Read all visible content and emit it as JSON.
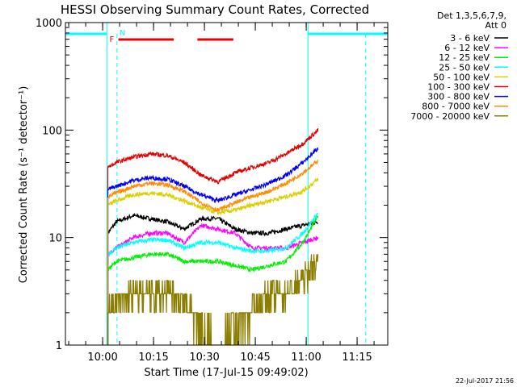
{
  "chart_data": {
    "type": "line",
    "title": "HESSI Observing Summary Count Rates, Corrected",
    "xlabel": "Start Time (17-Jul-15 09:49:02)",
    "ylabel": "Corrected Count Rate (s⁻¹ detector⁻¹)",
    "yscale": "log",
    "ylim": [
      1,
      1000
    ],
    "xlim_minutes_after_start": [
      0,
      95
    ],
    "yticks": [
      "1",
      "10",
      "100",
      "1000"
    ],
    "xticks": [
      {
        "label": "10:00",
        "t": 10.97
      },
      {
        "label": "10:15",
        "t": 25.97
      },
      {
        "label": "10:30",
        "t": 40.97
      },
      {
        "label": "10:45",
        "t": 55.97
      },
      {
        "label": "11:00",
        "t": 70.97
      },
      {
        "label": "11:15",
        "t": 85.97
      }
    ],
    "legend": {
      "header": [
        "Det 1,3,5,6,7,9,",
        "Att 0"
      ],
      "placement": "outside-right",
      "entries": [
        {
          "label": "3 - 6 keV",
          "color": "#000000"
        },
        {
          "label": "6 - 12 keV",
          "color": "#ff00ff"
        },
        {
          "label": "12 - 25 keV",
          "color": "#00ee00"
        },
        {
          "label": "25 - 50 keV",
          "color": "#00ffff"
        },
        {
          "label": "50 - 100 keV",
          "color": "#d8d000"
        },
        {
          "label": "100 - 300 keV",
          "color": "#e00000"
        },
        {
          "label": "300 - 800 keV",
          "color": "#0000ee"
        },
        {
          "label": "800 - 7000 keV",
          "color": "#ff8c00"
        },
        {
          "label": "7000 - 20000 keV",
          "color": "#8b7d00"
        }
      ]
    },
    "data_start_t": 12.5,
    "data_end_t": 74.5,
    "series": [
      {
        "name": "3 - 6 keV",
        "x": [
          12.5,
          15,
          20,
          25,
          30,
          35,
          40,
          45,
          50,
          55,
          60,
          65,
          70,
          74.5
        ],
        "y": [
          11,
          14,
          16,
          15,
          14,
          12,
          15,
          15,
          12,
          11,
          11,
          12,
          13,
          14
        ]
      },
      {
        "name": "6 - 12 keV",
        "x": [
          12.5,
          15,
          20,
          25,
          30,
          35,
          40,
          45,
          50,
          55,
          60,
          65,
          70,
          74.5
        ],
        "y": [
          7,
          8,
          10,
          11,
          11,
          9,
          13,
          12,
          11,
          8,
          8,
          8,
          9,
          10
        ]
      },
      {
        "name": "12 - 25 keV",
        "x": [
          12.5,
          15,
          20,
          25,
          30,
          35,
          40,
          45,
          50,
          55,
          60,
          65,
          70,
          74.5
        ],
        "y": [
          5,
          6,
          6.5,
          7,
          7,
          6,
          6,
          6,
          5.5,
          5,
          5.5,
          6,
          9,
          16
        ]
      },
      {
        "name": "25 - 50 keV",
        "x": [
          12.5,
          15,
          20,
          25,
          30,
          35,
          40,
          45,
          50,
          55,
          60,
          65,
          70,
          74.5
        ],
        "y": [
          7,
          8,
          9,
          9.5,
          9.5,
          8,
          9,
          9,
          8,
          7.5,
          7.5,
          8,
          11,
          17
        ]
      },
      {
        "name": "50 - 100 keV",
        "x": [
          12.5,
          15,
          20,
          25,
          30,
          35,
          40,
          45,
          50,
          55,
          60,
          65,
          70,
          74.5
        ],
        "y": [
          20,
          22,
          25,
          26,
          25,
          22,
          19,
          17,
          18,
          20,
          22,
          24,
          27,
          35
        ]
      },
      {
        "name": "100 - 300 keV",
        "x": [
          12.5,
          15,
          20,
          25,
          30,
          35,
          40,
          45,
          50,
          55,
          60,
          65,
          70,
          74.5
        ],
        "y": [
          45,
          50,
          56,
          60,
          58,
          50,
          38,
          33,
          40,
          45,
          50,
          60,
          75,
          100
        ]
      },
      {
        "name": "300 - 800 keV",
        "x": [
          12.5,
          15,
          20,
          25,
          30,
          35,
          40,
          45,
          50,
          55,
          60,
          65,
          70,
          74.5
        ],
        "y": [
          28,
          30,
          34,
          36,
          35,
          30,
          25,
          22,
          25,
          28,
          32,
          38,
          50,
          68
        ]
      },
      {
        "name": "800 - 7000 keV",
        "x": [
          12.5,
          15,
          20,
          25,
          30,
          35,
          40,
          45,
          50,
          55,
          60,
          65,
          70,
          74.5
        ],
        "y": [
          24,
          26,
          30,
          32,
          31,
          27,
          21,
          18,
          21,
          24,
          27,
          32,
          40,
          52
        ]
      },
      {
        "name": "7000 - 20000 keV",
        "x": [
          12.5,
          15,
          20,
          25,
          30,
          35,
          40,
          45,
          50,
          55,
          60,
          65,
          70,
          74.5
        ],
        "y": [
          2,
          2.5,
          3,
          3,
          3,
          2.5,
          1.5,
          1,
          1.5,
          2,
          3,
          3,
          4,
          6
        ]
      }
    ],
    "night_intervals": [
      [
        -10,
        12.2
      ],
      [
        71.5,
        105
      ]
    ],
    "saa_markers": [
      15.2,
      88.5
    ],
    "flare_flag": {
      "label": "F",
      "intervals": [
        [
          15.6,
          31.9
        ],
        [
          38.9,
          49.5
        ]
      ]
    },
    "night_flag_label": "N",
    "flag_colors": {
      "flare": "#ee0000",
      "night": "#00ffff"
    },
    "timestamp": "22-Jul-2017 21:56"
  }
}
